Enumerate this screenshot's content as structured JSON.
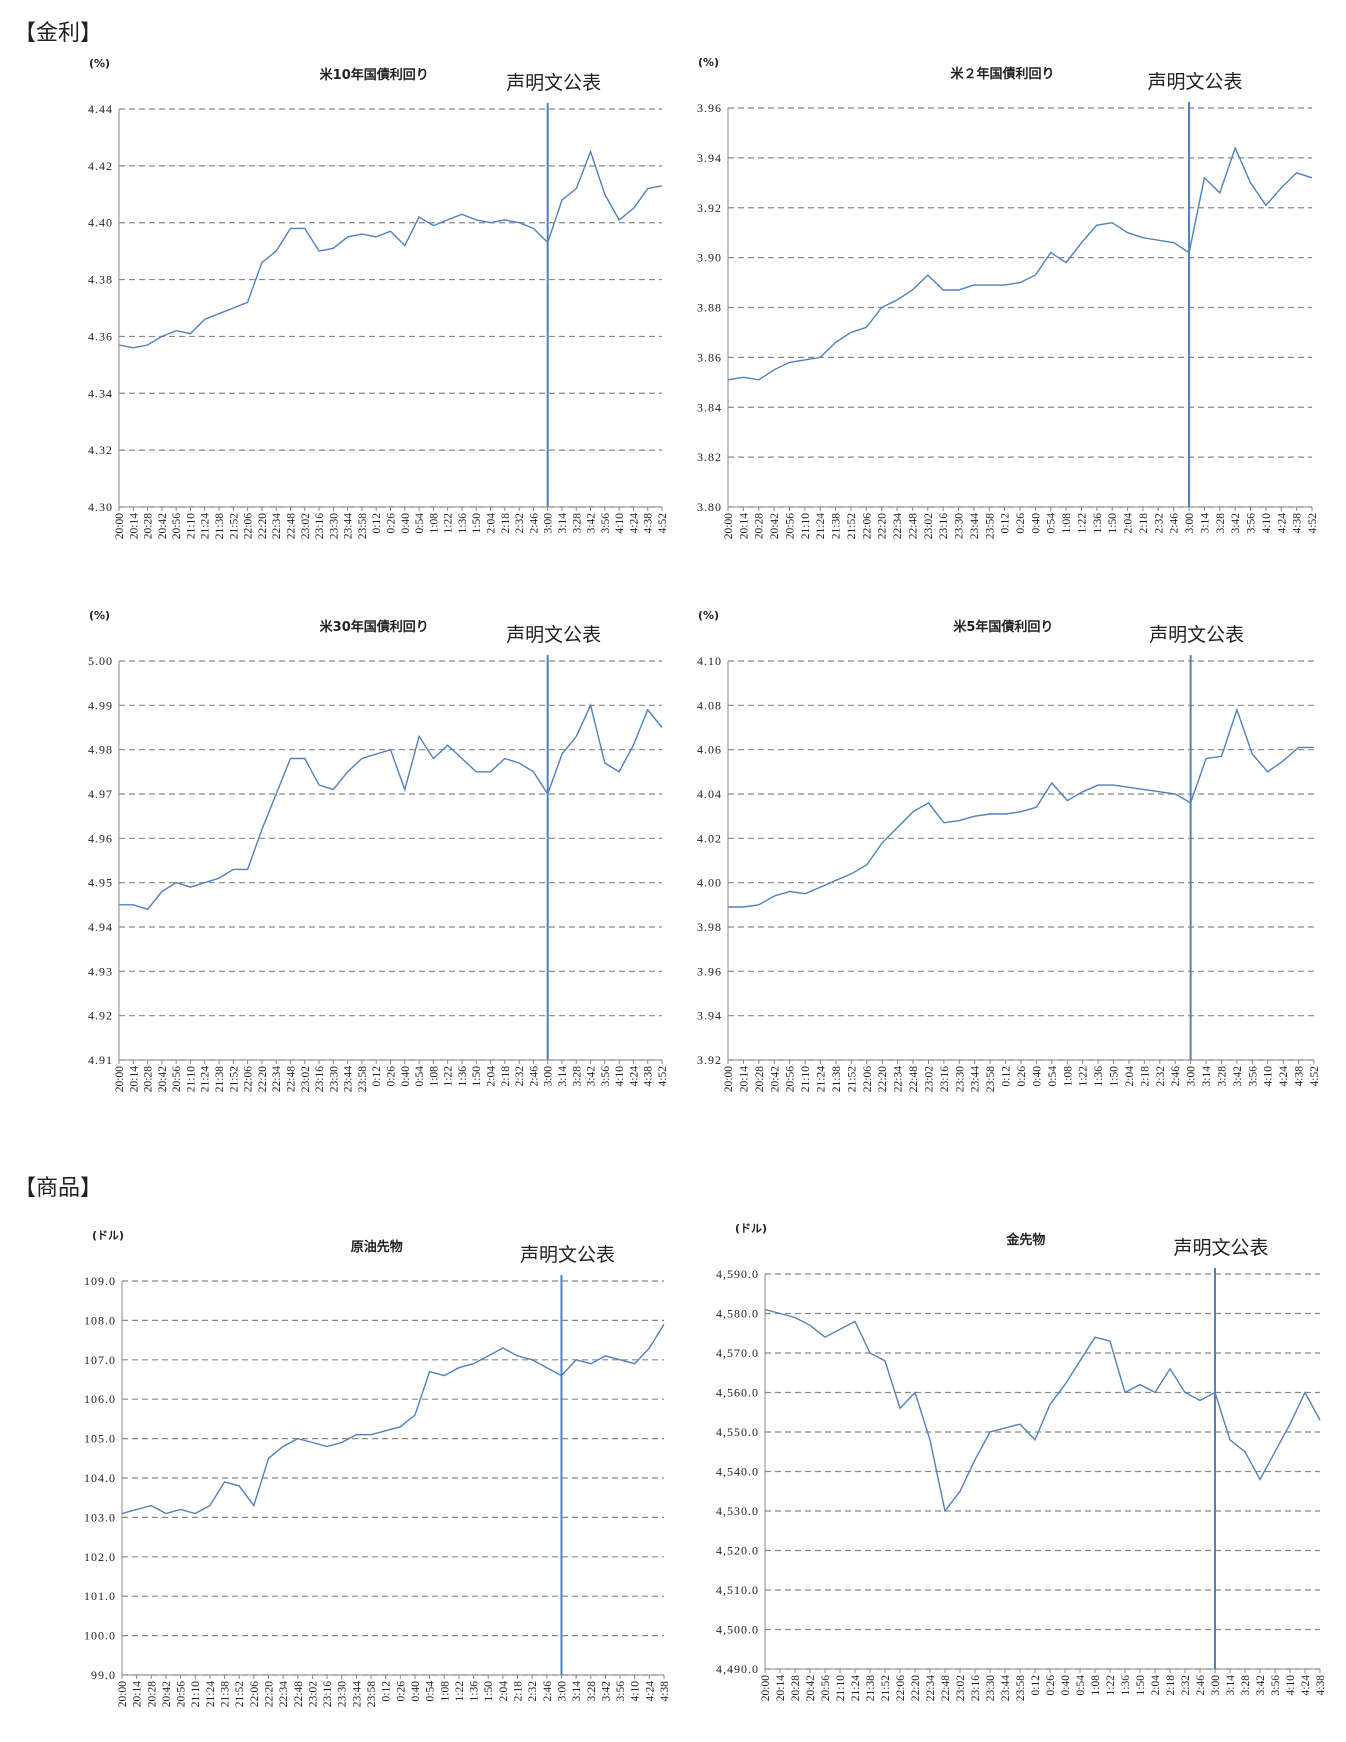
{
  "sections": [
    "【金利】",
    "【商品】"
  ],
  "chart_data": [
    {
      "type": "line",
      "section": 0,
      "title": "米10年国債利回り",
      "y_label": "(%)",
      "color": "#4f81bd",
      "grid": true,
      "annotation": {
        "text": "声明文公表",
        "x": "3:00"
      },
      "categories": [
        "20:00",
        "20:14",
        "20:28",
        "20:42",
        "20:56",
        "21:10",
        "21:24",
        "21:38",
        "21:52",
        "22:06",
        "22:20",
        "22:34",
        "22:48",
        "23:02",
        "23:16",
        "23:30",
        "23:44",
        "23:58",
        "0:12",
        "0:26",
        "0:40",
        "0:54",
        "1:08",
        "1:22",
        "1:36",
        "1:50",
        "2:04",
        "2:18",
        "2:32",
        "2:46",
        "3:00",
        "3:14",
        "3:28",
        "3:42",
        "3:56",
        "4:10",
        "4:24",
        "4:38",
        "4:52"
      ],
      "values": [
        4.357,
        4.356,
        4.357,
        4.36,
        4.362,
        4.361,
        4.366,
        4.368,
        4.37,
        4.372,
        4.386,
        4.39,
        4.398,
        4.398,
        4.39,
        4.391,
        4.395,
        4.396,
        4.395,
        4.397,
        4.392,
        4.402,
        4.399,
        4.401,
        4.403,
        4.401,
        4.4,
        4.401,
        4.4,
        4.398,
        4.393,
        4.408,
        4.412,
        4.425,
        4.41,
        4.401,
        4.405,
        4.412,
        4.413
      ],
      "ylim": [
        4.3,
        4.44
      ],
      "yticks": [
        {
          "value": 4.3,
          "label": "4.30"
        },
        4.32,
        4.34,
        4.36,
        4.38,
        {
          "value": 4.4,
          "label": "4.40"
        },
        4.42,
        4.44
      ]
    },
    {
      "type": "line",
      "section": 0,
      "title": "米２年国債利回り",
      "y_label": "(%)",
      "color": "#4f81bd",
      "grid": true,
      "annotation": {
        "text": "声明文公表",
        "x": "3:00"
      },
      "categories": [
        "20:00",
        "20:14",
        "20:28",
        "20:42",
        "20:56",
        "21:10",
        "21:24",
        "21:38",
        "21:52",
        "22:06",
        "22:20",
        "22:34",
        "22:48",
        "23:02",
        "23:16",
        "23:30",
        "23:44",
        "23:58",
        "0:12",
        "0:26",
        "0:40",
        "0:54",
        "1:08",
        "1:22",
        "1:36",
        "1:50",
        "2:04",
        "2:18",
        "2:32",
        "2:46",
        "3:00",
        "3:14",
        "3:28",
        "3:42",
        "3:56",
        "4:10",
        "4:24",
        "4:38",
        "4:52"
      ],
      "values": [
        3.851,
        3.852,
        3.851,
        3.855,
        3.858,
        3.859,
        3.86,
        3.866,
        3.87,
        3.872,
        3.88,
        3.883,
        3.887,
        3.893,
        3.887,
        3.887,
        3.889,
        3.889,
        3.889,
        3.89,
        3.893,
        3.902,
        3.898,
        3.906,
        3.913,
        3.914,
        3.91,
        3.908,
        3.907,
        3.906,
        3.902,
        3.932,
        3.926,
        3.944,
        3.93,
        3.921,
        3.928,
        3.934,
        3.932
      ],
      "ylim": [
        3.8,
        3.96
      ],
      "yticks": [
        {
          "value": 3.8,
          "label": "3.80"
        },
        3.82,
        3.84,
        3.86,
        3.88,
        {
          "value": 3.9,
          "label": "3.90"
        },
        3.92,
        3.94,
        3.96
      ]
    },
    {
      "type": "line",
      "section": 0,
      "title": "米30年国債利回り",
      "y_label": "(%)",
      "color": "#4f81bd",
      "grid": true,
      "annotation": {
        "text": "声明文公表",
        "x": "3:00"
      },
      "categories": [
        "20:00",
        "20:14",
        "20:28",
        "20:42",
        "20:56",
        "21:10",
        "21:24",
        "21:38",
        "21:52",
        "22:06",
        "22:20",
        "22:34",
        "22:48",
        "23:02",
        "23:16",
        "23:30",
        "23:44",
        "23:58",
        "0:12",
        "0:26",
        "0:40",
        "0:54",
        "1:08",
        "1:22",
        "1:36",
        "1:50",
        "2:04",
        "2:18",
        "2:32",
        "2:46",
        "3:00",
        "3:14",
        "3:28",
        "3:42",
        "3:56",
        "4:10",
        "4:24",
        "4:38",
        "4:52"
      ],
      "values": [
        4.945,
        4.945,
        4.944,
        4.948,
        4.95,
        4.949,
        4.95,
        4.951,
        4.953,
        4.953,
        4.962,
        4.97,
        4.978,
        4.978,
        4.972,
        4.971,
        4.975,
        4.978,
        4.979,
        4.98,
        4.971,
        4.983,
        4.978,
        4.981,
        4.978,
        4.975,
        4.975,
        4.978,
        4.977,
        4.975,
        4.97,
        4.979,
        4.983,
        4.99,
        4.977,
        4.975,
        4.981,
        4.989,
        4.985
      ],
      "ylim": [
        4.91,
        5.0
      ],
      "yticks": [
        4.91,
        4.92,
        4.93,
        4.94,
        4.95,
        4.96,
        4.97,
        4.98,
        4.99,
        {
          "value": 5.0,
          "label": "5.00"
        }
      ]
    },
    {
      "type": "line",
      "section": 0,
      "title": "米5年国債利回り",
      "y_label": "(%)",
      "color": "#4f81bd",
      "grid": true,
      "annotation": {
        "text": "声明文公表",
        "x": "3:00"
      },
      "categories": [
        "20:00",
        "20:14",
        "20:28",
        "20:42",
        "20:56",
        "21:10",
        "21:24",
        "21:38",
        "21:52",
        "22:06",
        "22:20",
        "22:34",
        "22:48",
        "23:02",
        "23:16",
        "23:30",
        "23:44",
        "23:58",
        "0:12",
        "0:26",
        "0:40",
        "0:54",
        "1:08",
        "1:22",
        "1:36",
        "1:50",
        "2:04",
        "2:18",
        "2:32",
        "2:46",
        "3:00",
        "3:14",
        "3:28",
        "3:42",
        "3:56",
        "4:10",
        "4:24",
        "4:38",
        "4:52"
      ],
      "values": [
        3.989,
        3.989,
        3.99,
        3.994,
        3.996,
        3.995,
        3.998,
        4.001,
        4.004,
        4.008,
        4.018,
        4.025,
        4.032,
        4.036,
        4.027,
        4.028,
        4.03,
        4.031,
        4.031,
        4.032,
        4.034,
        4.045,
        4.037,
        4.041,
        4.044,
        4.044,
        4.043,
        4.042,
        4.041,
        4.04,
        4.036,
        4.056,
        4.057,
        4.078,
        4.058,
        4.05,
        4.055,
        4.061,
        4.061
      ],
      "ylim": [
        3.92,
        4.1
      ],
      "yticks": [
        3.92,
        3.94,
        3.96,
        3.98,
        {
          "value": 4.0,
          "label": "4.00"
        },
        4.02,
        4.04,
        4.06,
        4.08,
        {
          "value": 4.1,
          "label": "4.10"
        }
      ]
    },
    {
      "type": "line",
      "section": 1,
      "title": "原油先物",
      "y_label": "(ドル)",
      "color": "#4f81bd",
      "grid": true,
      "annotation": {
        "text": "声明文公表",
        "x": "3:00"
      },
      "categories": [
        "20:00",
        "20:14",
        "20:28",
        "20:42",
        "20:56",
        "21:10",
        "21:24",
        "21:38",
        "21:52",
        "22:06",
        "22:20",
        "22:34",
        "22:48",
        "23:02",
        "23:16",
        "23:30",
        "23:44",
        "23:58",
        "0:12",
        "0:26",
        "0:40",
        "0:54",
        "1:08",
        "1:22",
        "1:36",
        "1:50",
        "2:04",
        "2:18",
        "2:32",
        "2:46",
        "3:00",
        "3:14",
        "3:28",
        "3:42",
        "3:56",
        "4:10",
        "4:24",
        "4:38"
      ],
      "values": [
        103.1,
        103.2,
        103.3,
        103.1,
        103.2,
        103.1,
        103.3,
        103.9,
        103.8,
        103.3,
        104.5,
        104.8,
        105.0,
        104.9,
        104.8,
        104.9,
        105.1,
        105.1,
        105.2,
        105.3,
        105.6,
        106.7,
        106.6,
        106.8,
        106.9,
        107.1,
        107.3,
        107.1,
        107.0,
        106.8,
        106.6,
        107.0,
        106.9,
        107.1,
        107.0,
        106.9,
        107.3,
        107.9
      ],
      "ylim": [
        99,
        109
      ],
      "yticks": [
        {
          "value": 99,
          "label": "99.0"
        },
        {
          "value": 100,
          "label": "100.0"
        },
        {
          "value": 101,
          "label": "101.0"
        },
        {
          "value": 102,
          "label": "102.0"
        },
        {
          "value": 103,
          "label": "103.0"
        },
        {
          "value": 104,
          "label": "104.0"
        },
        {
          "value": 105,
          "label": "105.0"
        },
        {
          "value": 106,
          "label": "106.0"
        },
        {
          "value": 107,
          "label": "107.0"
        },
        {
          "value": 108,
          "label": "108.0"
        },
        {
          "value": 109,
          "label": "109.0"
        }
      ]
    },
    {
      "type": "line",
      "section": 1,
      "title": "金先物",
      "y_label": "(ドル)",
      "color": "#4f81bd",
      "grid": true,
      "annotation": {
        "text": "声明文公表",
        "x": "3:00"
      },
      "categories": [
        "20:00",
        "20:14",
        "20:28",
        "20:42",
        "20:56",
        "21:10",
        "21:24",
        "21:38",
        "21:52",
        "22:06",
        "22:20",
        "22:34",
        "22:48",
        "23:02",
        "23:16",
        "23:30",
        "23:44",
        "23:58",
        "0:12",
        "0:26",
        "0:40",
        "0:54",
        "1:08",
        "1:22",
        "1:36",
        "1:50",
        "2:04",
        "2:18",
        "2:32",
        "2:46",
        "3:00",
        "3:14",
        "3:28",
        "3:42",
        "3:56",
        "4:10",
        "4:24",
        "4:38"
      ],
      "values": [
        4581,
        4580,
        4579,
        4577,
        4574,
        4576,
        4578,
        4570,
        4568,
        4556,
        4560,
        4548,
        4530,
        4535,
        4543,
        4550,
        4551,
        4552,
        4548,
        4557,
        4562,
        4568,
        4574,
        4573,
        4560,
        4562,
        4560,
        4566,
        4560,
        4558,
        4560,
        4548,
        4545,
        4538,
        4545,
        4552,
        4560,
        4553
      ],
      "ylim": [
        4490,
        4590
      ],
      "yticks": [
        {
          "value": 4490,
          "label": "4,490.0"
        },
        {
          "value": 4500,
          "label": "4,500.0"
        },
        {
          "value": 4510,
          "label": "4,510.0"
        },
        {
          "value": 4520,
          "label": "4,520.0"
        },
        {
          "value": 4530,
          "label": "4,530.0"
        },
        {
          "value": 4540,
          "label": "4,540.0"
        },
        {
          "value": 4550,
          "label": "4,550.0"
        },
        {
          "value": 4560,
          "label": "4,560.0"
        },
        {
          "value": 4570,
          "label": "4,570.0"
        },
        {
          "value": 4580,
          "label": "4,580.0"
        },
        {
          "value": 4590,
          "label": "4,590.0"
        }
      ]
    }
  ]
}
